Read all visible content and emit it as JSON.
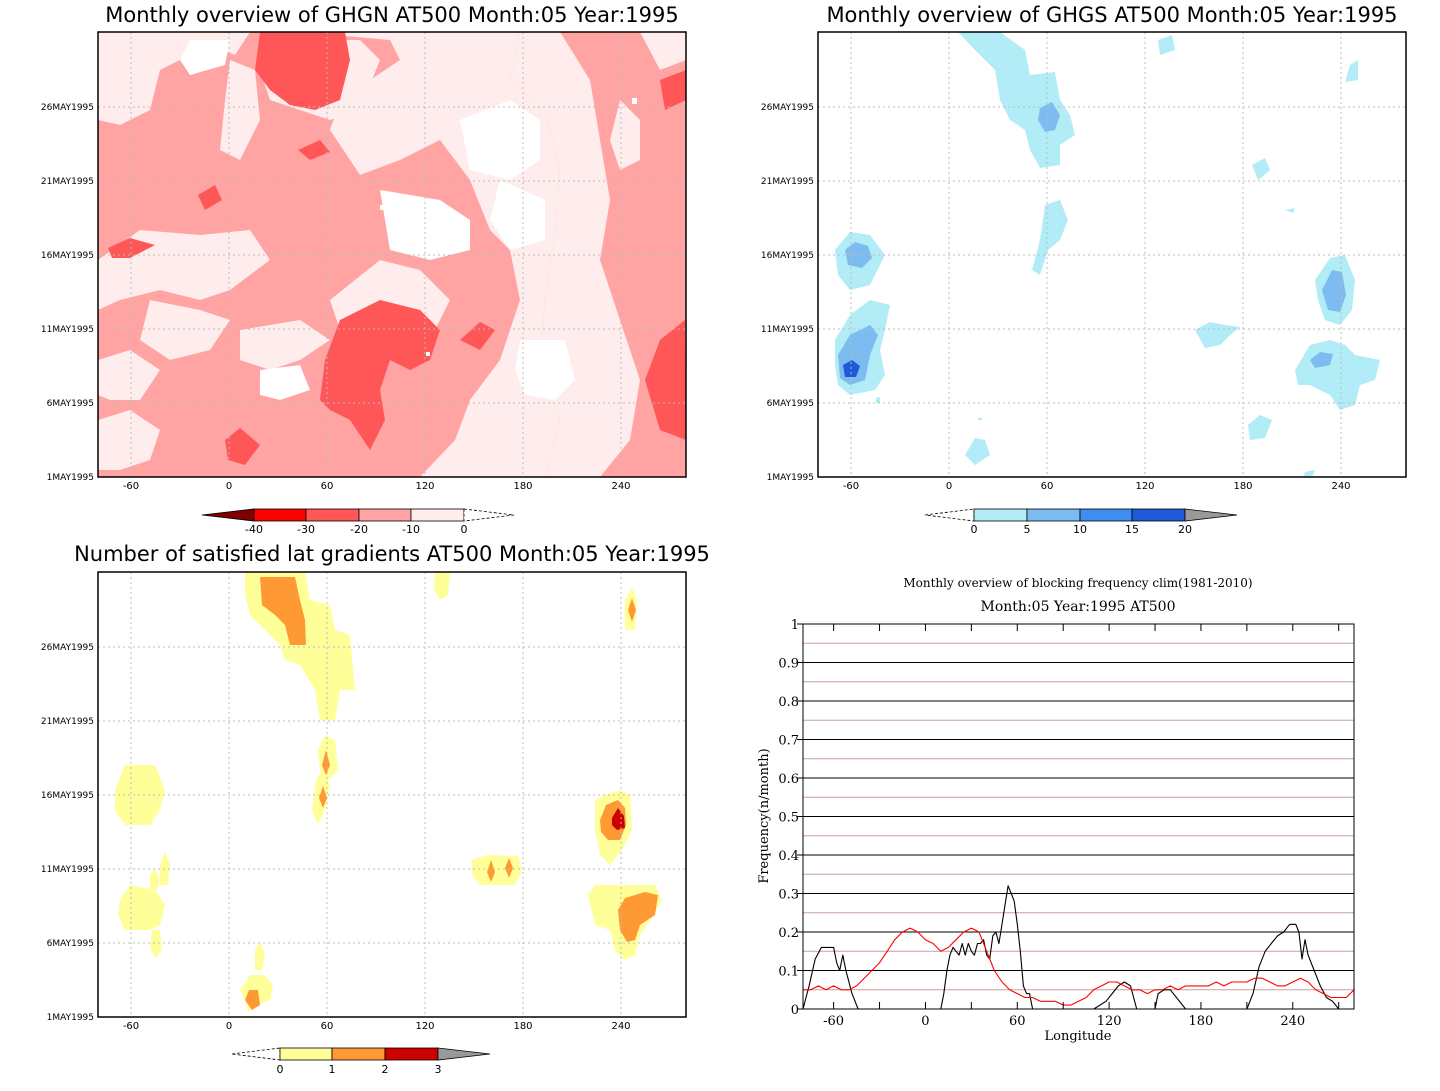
{
  "colors": {
    "red_scale": [
      "#ffecec",
      "#ffa3a3",
      "#ff5757",
      "#ff0000",
      "#7f0000"
    ],
    "blue_scale": [
      "#b2ecf7",
      "#7cbcf1",
      "#3c8ef0",
      "#1e5ad8"
    ],
    "yellow_scale": [
      "#ffff9a",
      "#ff9933",
      "#cc0000"
    ],
    "series_black": "#000000",
    "series_red": "#ff0000"
  },
  "chart_data": [
    {
      "id": "ghgn",
      "type": "heatmap",
      "title": "Monthly overview of GHGN AT500 Month:05 Year:1995",
      "xlim": [
        -80,
        280
      ],
      "x_ticks": [
        "-60",
        "0",
        "60",
        "120",
        "180",
        "240"
      ],
      "y_ticks": [
        "1MAY1995",
        "6MAY1995",
        "11MAY1995",
        "16MAY1995",
        "21MAY1995",
        "26MAY1995"
      ],
      "colorbar": {
        "labels": [
          "-40",
          "-30",
          "-20",
          "-10",
          "0"
        ]
      },
      "grid": true
    },
    {
      "id": "ghgs",
      "type": "heatmap",
      "title": "Monthly overview of GHGS AT500 Month:05 Year:1995",
      "xlim": [
        -80,
        280
      ],
      "x_ticks": [
        "-60",
        "0",
        "60",
        "120",
        "180",
        "240"
      ],
      "y_ticks": [
        "1MAY1995",
        "6MAY1995",
        "11MAY1995",
        "16MAY1995",
        "21MAY1995",
        "26MAY1995"
      ],
      "colorbar": {
        "labels": [
          "0",
          "5",
          "10",
          "15",
          "20"
        ]
      },
      "grid": true
    },
    {
      "id": "grad",
      "type": "heatmap",
      "title": "Number of satisfied lat gradients AT500 Month:05 Year:1995",
      "xlim": [
        -80,
        280
      ],
      "x_ticks": [
        "-60",
        "0",
        "60",
        "120",
        "180",
        "240"
      ],
      "y_ticks": [
        "1MAY1995",
        "6MAY1995",
        "11MAY1995",
        "16MAY1995",
        "21MAY1995",
        "26MAY1995"
      ],
      "colorbar": {
        "labels": [
          "0",
          "1",
          "2",
          "3"
        ]
      },
      "grid": true
    },
    {
      "id": "freq",
      "type": "line",
      "title": "Monthly overview of blocking frequency clim(1981-2010)",
      "subtitle": "Month:05 Year:1995  AT500",
      "xlabel": "Longitude",
      "ylabel": "Frequency(n/month)",
      "xlim": [
        -80,
        280
      ],
      "ylim": [
        0,
        1
      ],
      "x_ticks": [
        "-60",
        "0",
        "60",
        "120",
        "180",
        "240"
      ],
      "y_ticks": [
        "0",
        "0.1",
        "0.2",
        "0.3",
        "0.4",
        "0.5",
        "0.6",
        "0.7",
        "0.8",
        "0.9",
        "1"
      ],
      "grid": true,
      "series": [
        {
          "color": "#000000",
          "x": [
            -80,
            -76,
            -72,
            -68,
            -64,
            -60,
            -58,
            -56,
            -54,
            -52,
            -48,
            -44,
            -40,
            -30,
            -20,
            -10,
            0,
            5,
            10,
            12,
            14,
            16,
            18,
            20,
            22,
            24,
            26,
            28,
            30,
            32,
            34,
            36,
            38,
            40,
            42,
            44,
            46,
            48,
            50,
            52,
            54,
            56,
            58,
            60,
            62,
            64,
            66,
            68,
            70,
            80,
            90,
            100,
            110,
            118,
            122,
            126,
            130,
            134,
            138,
            150,
            152,
            156,
            160,
            170,
            180,
            190,
            200,
            210,
            214,
            218,
            222,
            226,
            230,
            234,
            238,
            240,
            242,
            244,
            246,
            248,
            250,
            254,
            258,
            262,
            266,
            270,
            280
          ],
          "y": [
            0,
            0.06,
            0.13,
            0.16,
            0.16,
            0.16,
            0.12,
            0.1,
            0.14,
            0.1,
            0.04,
            0,
            0,
            0,
            0,
            0,
            0,
            0,
            0,
            0.04,
            0.1,
            0.14,
            0.16,
            0.15,
            0.14,
            0.17,
            0.14,
            0.17,
            0.15,
            0.14,
            0.17,
            0.17,
            0.18,
            0.14,
            0.13,
            0.19,
            0.2,
            0.17,
            0.22,
            0.27,
            0.32,
            0.3,
            0.28,
            0.22,
            0.15,
            0.06,
            0.04,
            0.04,
            0,
            0,
            0,
            0,
            0,
            0.02,
            0.04,
            0.06,
            0.07,
            0.06,
            0,
            0,
            0.04,
            0.05,
            0.05,
            0,
            0,
            0,
            0,
            0,
            0.04,
            0.11,
            0.15,
            0.17,
            0.19,
            0.2,
            0.22,
            0.22,
            0.22,
            0.2,
            0.13,
            0.18,
            0.14,
            0.1,
            0.06,
            0.03,
            0.02,
            0,
            0
          ]
        },
        {
          "color": "#ff0000",
          "x": [
            -80,
            -75,
            -70,
            -65,
            -60,
            -55,
            -50,
            -45,
            -40,
            -35,
            -30,
            -25,
            -20,
            -15,
            -10,
            -5,
            0,
            5,
            10,
            15,
            20,
            25,
            30,
            35,
            40,
            45,
            50,
            55,
            60,
            65,
            70,
            75,
            80,
            85,
            90,
            95,
            100,
            105,
            110,
            115,
            120,
            125,
            130,
            135,
            140,
            145,
            150,
            155,
            160,
            165,
            170,
            175,
            180,
            185,
            190,
            195,
            200,
            205,
            210,
            215,
            220,
            225,
            230,
            235,
            240,
            245,
            250,
            255,
            260,
            265,
            270,
            275,
            280
          ],
          "y": [
            0.05,
            0.05,
            0.06,
            0.05,
            0.06,
            0.05,
            0.05,
            0.06,
            0.08,
            0.1,
            0.12,
            0.15,
            0.18,
            0.2,
            0.21,
            0.2,
            0.18,
            0.17,
            0.15,
            0.16,
            0.18,
            0.2,
            0.21,
            0.2,
            0.15,
            0.1,
            0.07,
            0.05,
            0.04,
            0.03,
            0.03,
            0.02,
            0.02,
            0.02,
            0.01,
            0.01,
            0.02,
            0.03,
            0.05,
            0.06,
            0.07,
            0.07,
            0.06,
            0.05,
            0.05,
            0.04,
            0.05,
            0.05,
            0.06,
            0.05,
            0.06,
            0.06,
            0.06,
            0.06,
            0.07,
            0.06,
            0.07,
            0.07,
            0.07,
            0.08,
            0.08,
            0.07,
            0.06,
            0.06,
            0.07,
            0.08,
            0.07,
            0.05,
            0.04,
            0.03,
            0.03,
            0.03,
            0.05
          ]
        }
      ]
    }
  ]
}
